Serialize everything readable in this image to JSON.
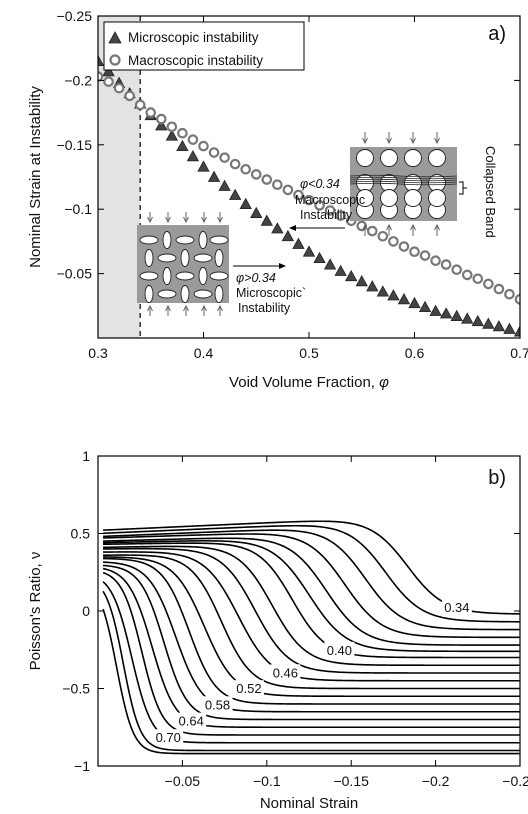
{
  "chart_data": [
    {
      "type": "scatter",
      "panel_label": "a)",
      "xlabel": "Void Volume Fraction, ",
      "xlabel_symbol": "φ",
      "ylabel": "Nominal Strain at Instability",
      "xlim": [
        0.3,
        0.7
      ],
      "ylim": [
        -0.25,
        0
      ],
      "y_inverted": true,
      "x_ticks": [
        "0.3",
        "0.4",
        "0.5",
        "0.6",
        "0.7"
      ],
      "y_ticks": [
        "−0.25",
        "−0.2",
        "−0.15",
        "−0.1",
        "−0.05"
      ],
      "legend_position": "top-left",
      "shaded_region_x": [
        0.3,
        0.34
      ],
      "threshold_x": 0.34,
      "x": [
        0.3,
        0.31,
        0.32,
        0.33,
        0.34,
        0.35,
        0.36,
        0.37,
        0.38,
        0.39,
        0.4,
        0.41,
        0.42,
        0.43,
        0.44,
        0.45,
        0.46,
        0.47,
        0.48,
        0.49,
        0.5,
        0.51,
        0.52,
        0.53,
        0.54,
        0.55,
        0.56,
        0.57,
        0.58,
        0.59,
        0.6,
        0.61,
        0.62,
        0.63,
        0.64,
        0.65,
        0.66,
        0.67,
        0.68,
        0.69,
        0.7
      ],
      "series": [
        {
          "name": "Microscopic instability",
          "marker": "triangle",
          "color": "#333333",
          "values": [
            -0.215,
            -0.207,
            -0.198,
            -0.19,
            -0.182,
            -0.173,
            -0.165,
            -0.157,
            -0.149,
            -0.141,
            -0.133,
            -0.125,
            -0.118,
            -0.111,
            -0.104,
            -0.097,
            -0.091,
            -0.085,
            -0.079,
            -0.073,
            -0.067,
            -0.062,
            -0.057,
            -0.052,
            -0.048,
            -0.044,
            -0.04,
            -0.036,
            -0.033,
            -0.03,
            -0.027,
            -0.024,
            -0.021,
            -0.019,
            -0.017,
            -0.015,
            -0.013,
            -0.011,
            -0.009,
            -0.007,
            -0.005
          ]
        },
        {
          "name": "Macroscopic instability",
          "marker": "circle",
          "color": "#777777",
          "values": [
            -0.203,
            -0.199,
            -0.194,
            -0.188,
            -0.181,
            -0.175,
            -0.17,
            -0.164,
            -0.159,
            -0.154,
            -0.149,
            -0.144,
            -0.14,
            -0.135,
            -0.131,
            -0.127,
            -0.123,
            -0.119,
            -0.115,
            -0.111,
            -0.107,
            -0.103,
            -0.099,
            -0.095,
            -0.091,
            -0.087,
            -0.083,
            -0.079,
            -0.075,
            -0.071,
            -0.067,
            -0.064,
            -0.06,
            -0.057,
            -0.053,
            -0.049,
            -0.046,
            -0.042,
            -0.038,
            -0.034,
            -0.03
          ]
        }
      ],
      "annotations": {
        "macro_condition": "φ<0.34",
        "macro_line1": "Macroscopic",
        "macro_line2": "Instability",
        "collapsed_band": "Collapsed Band",
        "micro_condition": "φ>0.34",
        "micro_line1": "Microscopic`",
        "micro_line2": "Instability"
      }
    },
    {
      "type": "line",
      "panel_label": "b)",
      "xlabel": "Nominal Strain",
      "ylabel": "Poisson's Ratio, ν",
      "xlim": [
        0,
        -0.25
      ],
      "ylim": [
        -1,
        1
      ],
      "x_ticks": [
        "−0.05",
        "−0.1",
        "−0.15",
        "−0.2",
        "−0.25"
      ],
      "y_ticks": [
        "1",
        "0.5",
        "0",
        "−0.5",
        "−1"
      ],
      "curve_labels": [
        "0.34",
        "0.40",
        "0.46",
        "0.52",
        "0.58",
        "0.64",
        "0.70"
      ],
      "series": [
        {
          "phi": 0.34,
          "v0": 0.52,
          "v_peak": 0.61,
          "strain_c": -0.183,
          "w": 0.011,
          "v_final": -0.02
        },
        {
          "phi": 0.35,
          "v0": 0.5,
          "v_peak": 0.58,
          "strain_c": -0.17,
          "w": 0.011,
          "v_final": -0.07
        },
        {
          "phi": 0.36,
          "v0": 0.48,
          "v_peak": 0.55,
          "strain_c": -0.158,
          "w": 0.011,
          "v_final": -0.12
        },
        {
          "phi": 0.37,
          "v0": 0.47,
          "v_peak": 0.52,
          "strain_c": -0.146,
          "w": 0.011,
          "v_final": -0.17
        },
        {
          "phi": 0.38,
          "v0": 0.45,
          "v_peak": 0.49,
          "strain_c": -0.135,
          "w": 0.011,
          "v_final": -0.22
        },
        {
          "phi": 0.39,
          "v0": 0.44,
          "v_peak": 0.47,
          "strain_c": -0.125,
          "w": 0.011,
          "v_final": -0.26
        },
        {
          "phi": 0.4,
          "v0": 0.43,
          "v_peak": 0.45,
          "strain_c": -0.115,
          "w": 0.01,
          "v_final": -0.3
        },
        {
          "phi": 0.42,
          "v0": 0.41,
          "v_peak": 0.43,
          "strain_c": -0.103,
          "w": 0.01,
          "v_final": -0.35
        },
        {
          "phi": 0.44,
          "v0": 0.4,
          "v_peak": 0.41,
          "strain_c": -0.093,
          "w": 0.01,
          "v_final": -0.4
        },
        {
          "phi": 0.46,
          "v0": 0.38,
          "v_peak": 0.39,
          "strain_c": -0.083,
          "w": 0.01,
          "v_final": -0.45
        },
        {
          "phi": 0.49,
          "v0": 0.36,
          "v_peak": 0.37,
          "strain_c": -0.073,
          "w": 0.009,
          "v_final": -0.5
        },
        {
          "phi": 0.52,
          "v0": 0.35,
          "v_peak": 0.35,
          "strain_c": -0.063,
          "w": 0.009,
          "v_final": -0.55
        },
        {
          "phi": 0.55,
          "v0": 0.34,
          "v_peak": 0.34,
          "strain_c": -0.054,
          "w": 0.008,
          "v_final": -0.6
        },
        {
          "phi": 0.58,
          "v0": 0.32,
          "v_peak": 0.32,
          "strain_c": -0.046,
          "w": 0.008,
          "v_final": -0.65
        },
        {
          "phi": 0.61,
          "v0": 0.3,
          "v_peak": 0.3,
          "strain_c": -0.039,
          "w": 0.007,
          "v_final": -0.7
        },
        {
          "phi": 0.64,
          "v0": 0.29,
          "v_peak": 0.29,
          "strain_c": -0.032,
          "w": 0.007,
          "v_final": -0.75
        },
        {
          "phi": 0.67,
          "v0": 0.27,
          "v_peak": 0.27,
          "strain_c": -0.026,
          "w": 0.006,
          "v_final": -0.8
        },
        {
          "phi": 0.7,
          "v0": 0.25,
          "v_peak": 0.25,
          "strain_c": -0.02,
          "w": 0.006,
          "v_final": -0.85
        },
        {
          "phi": 0.73,
          "v0": 0.22,
          "v_peak": 0.22,
          "strain_c": -0.015,
          "w": 0.005,
          "v_final": -0.9
        },
        {
          "phi": 0.76,
          "v0": 0.2,
          "v_peak": 0.2,
          "strain_c": -0.011,
          "w": 0.005,
          "v_final": -0.92
        }
      ]
    }
  ]
}
